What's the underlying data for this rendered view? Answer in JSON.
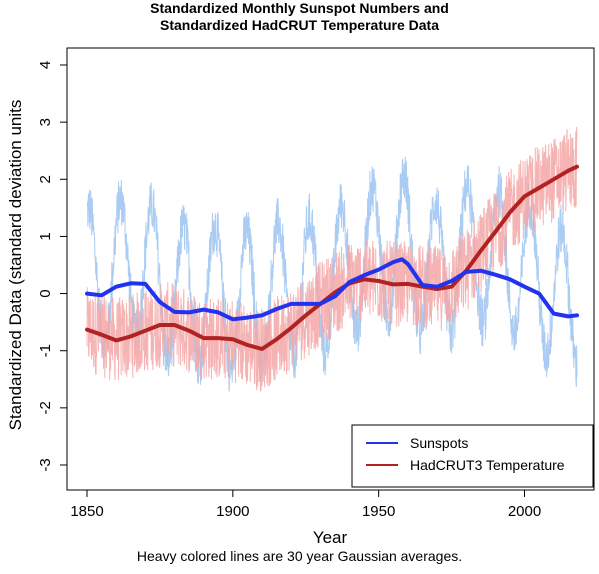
{
  "chart_data": {
    "type": "line",
    "title_line1": "Standardized Monthly Sunspot Numbers and",
    "title_line2": "Standardized HadCRUT Temperature Data",
    "xlabel": "Year",
    "ylabel": "Standardized Data (standard deviation units",
    "caption": "Heavy colored lines are 30 year Gaussian averages.",
    "xlim": [
      1850,
      2018
    ],
    "ylim": [
      -3,
      4
    ],
    "x_ticks": [
      1850,
      1900,
      1950,
      2000
    ],
    "y_ticks": [
      -3,
      -2,
      -1,
      0,
      1,
      2,
      3,
      4
    ],
    "legend_position": "bottom-right",
    "colors": {
      "sunspots_smooth": "#2233ee",
      "temperature_smooth": "#b22222",
      "sunspots_raw": "#aaccf2",
      "temperature_raw": "#f4a6a6"
    },
    "series": [
      {
        "name": "Sunspots",
        "x": [
          1850,
          1855,
          1860,
          1865,
          1870,
          1875,
          1880,
          1885,
          1890,
          1895,
          1900,
          1905,
          1910,
          1915,
          1920,
          1925,
          1930,
          1935,
          1940,
          1945,
          1950,
          1955,
          1958,
          1960,
          1965,
          1970,
          1975,
          1980,
          1985,
          1990,
          1995,
          2000,
          2005,
          2010,
          2015,
          2018
        ],
        "values": [
          0.0,
          -0.03,
          0.12,
          0.18,
          0.17,
          -0.15,
          -0.32,
          -0.33,
          -0.28,
          -0.33,
          -0.45,
          -0.42,
          -0.38,
          -0.27,
          -0.18,
          -0.18,
          -0.18,
          -0.05,
          0.2,
          0.32,
          0.42,
          0.55,
          0.6,
          0.52,
          0.15,
          0.12,
          0.22,
          0.38,
          0.4,
          0.33,
          0.25,
          0.12,
          0.0,
          -0.35,
          -0.4,
          -0.38
        ]
      },
      {
        "name": "HadCRUT3 Temperature",
        "x": [
          1850,
          1855,
          1860,
          1865,
          1870,
          1875,
          1880,
          1885,
          1890,
          1895,
          1900,
          1905,
          1910,
          1915,
          1920,
          1925,
          1930,
          1935,
          1940,
          1945,
          1950,
          1955,
          1960,
          1965,
          1970,
          1975,
          1980,
          1985,
          1990,
          1995,
          2000,
          2005,
          2010,
          2015,
          2018
        ],
        "values": [
          -0.63,
          -0.72,
          -0.82,
          -0.75,
          -0.65,
          -0.55,
          -0.55,
          -0.65,
          -0.78,
          -0.78,
          -0.8,
          -0.9,
          -0.97,
          -0.8,
          -0.6,
          -0.38,
          -0.18,
          0.02,
          0.18,
          0.25,
          0.22,
          0.16,
          0.17,
          0.12,
          0.08,
          0.12,
          0.4,
          0.75,
          1.08,
          1.42,
          1.7,
          1.85,
          2.0,
          2.15,
          2.22
        ]
      }
    ]
  }
}
